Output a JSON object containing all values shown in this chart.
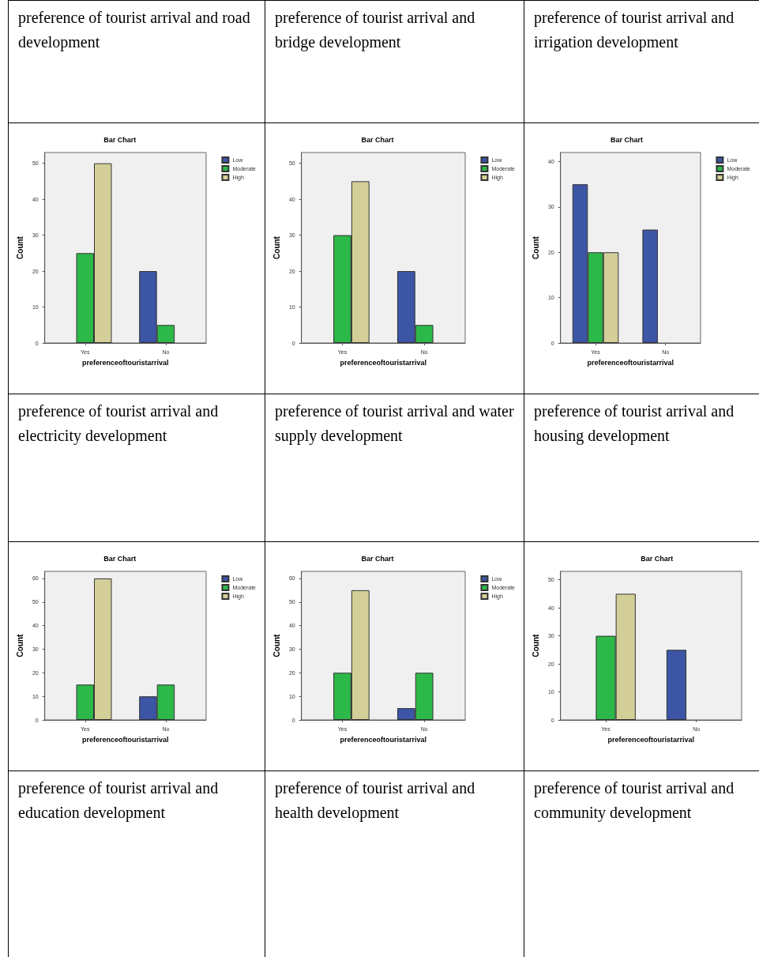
{
  "chart_data": [
    {
      "type": "bar",
      "title": "Bar Chart",
      "annotations": [
        "preference of tourist arrival and road development"
      ],
      "xlabel": "preferenceoftouristarrival",
      "ylabel": "Count",
      "categories": [
        "Yes",
        "No"
      ],
      "series": [
        {
          "name": "Low",
          "color": "#3c55a5",
          "values": [
            null,
            20
          ]
        },
        {
          "name": "Moderate",
          "color": "#2db84a",
          "values": [
            25,
            5
          ]
        },
        {
          "name": "High",
          "color": "#d4cf98",
          "values": [
            50,
            null
          ]
        }
      ],
      "ylim": [
        0,
        53
      ],
      "yticks": [
        0,
        10,
        20,
        30,
        40,
        50
      ],
      "grid": false,
      "legend": "top right"
    },
    {
      "type": "bar",
      "title": "Bar Chart",
      "annotations": [
        "preference of tourist arrival and bridge development"
      ],
      "xlabel": "preferenceoftouristarrival",
      "ylabel": "Count",
      "categories": [
        "Yes",
        "No"
      ],
      "series": [
        {
          "name": "Low",
          "color": "#3c55a5",
          "values": [
            null,
            20
          ]
        },
        {
          "name": "Moderate",
          "color": "#2db84a",
          "values": [
            30,
            5
          ]
        },
        {
          "name": "High",
          "color": "#d4cf98",
          "values": [
            45,
            null
          ]
        }
      ],
      "ylim": [
        0,
        53
      ],
      "yticks": [
        0,
        10,
        20,
        30,
        40,
        50
      ],
      "grid": false,
      "legend": "top right"
    },
    {
      "type": "bar",
      "title": "Bar Chart",
      "annotations": [
        "preference of tourist arrival and irrigation  development"
      ],
      "xlabel": "preferenceoftouristarrival",
      "ylabel": "Count",
      "categories": [
        "Yes",
        "No"
      ],
      "series": [
        {
          "name": "Low",
          "color": "#3c55a5",
          "values": [
            35,
            25
          ]
        },
        {
          "name": "Moderate",
          "color": "#2db84a",
          "values": [
            20,
            null
          ]
        },
        {
          "name": "High",
          "color": "#d4cf98",
          "values": [
            20,
            null
          ]
        }
      ],
      "ylim": [
        0,
        42
      ],
      "yticks": [
        0,
        10,
        20,
        30,
        40
      ],
      "grid": false,
      "legend": "top right"
    },
    {
      "type": "bar",
      "title": "Bar Chart",
      "annotations": [
        "preference of tourist arrival and electricity development"
      ],
      "xlabel": "preferenceoftouristarrival",
      "ylabel": "Count",
      "categories": [
        "Yes",
        "No"
      ],
      "series": [
        {
          "name": "Low",
          "color": "#3c55a5",
          "values": [
            null,
            10
          ]
        },
        {
          "name": "Moderate",
          "color": "#2db84a",
          "values": [
            15,
            15
          ]
        },
        {
          "name": "High",
          "color": "#d4cf98",
          "values": [
            60,
            null
          ]
        }
      ],
      "ylim": [
        0,
        63
      ],
      "yticks": [
        0,
        10,
        20,
        30,
        40,
        50,
        60
      ],
      "grid": false,
      "legend": "top right"
    },
    {
      "type": "bar",
      "title": "Bar Chart",
      "annotations": [
        "preference of tourist arrival and water supply development"
      ],
      "xlabel": "preferenceoftouristarrival",
      "ylabel": "Count",
      "categories": [
        "Yes",
        "No"
      ],
      "series": [
        {
          "name": "Low",
          "color": "#3c55a5",
          "values": [
            null,
            5
          ]
        },
        {
          "name": "Moderate",
          "color": "#2db84a",
          "values": [
            20,
            20
          ]
        },
        {
          "name": "High",
          "color": "#d4cf98",
          "values": [
            55,
            null
          ]
        }
      ],
      "ylim": [
        0,
        63
      ],
      "yticks": [
        0,
        10,
        20,
        30,
        40,
        50,
        60
      ],
      "grid": false,
      "legend": "top right"
    },
    {
      "type": "bar",
      "title": "Bar Chart",
      "annotations": [
        "preference of tourist arrival and housing development"
      ],
      "xlabel": "preferenceoftouristarrival",
      "ylabel": "Count",
      "categories": [
        "Yes",
        "No"
      ],
      "series": [
        {
          "color": "#3c55a5",
          "values": [
            null,
            25
          ]
        },
        {
          "color": "#2db84a",
          "values": [
            30,
            null
          ]
        },
        {
          "color": "#d4cf98",
          "values": [
            45,
            null
          ]
        }
      ],
      "ylim": [
        0,
        53
      ],
      "yticks": [
        0,
        10,
        20,
        30,
        40,
        50
      ],
      "grid": false,
      "legend": false
    },
    {
      "type": "other",
      "annotations": [
        "preference of tourist arrival and education development",
        "preference of tourist arrival and health development",
        "preference of tourist arrival and community development"
      ]
    }
  ]
}
